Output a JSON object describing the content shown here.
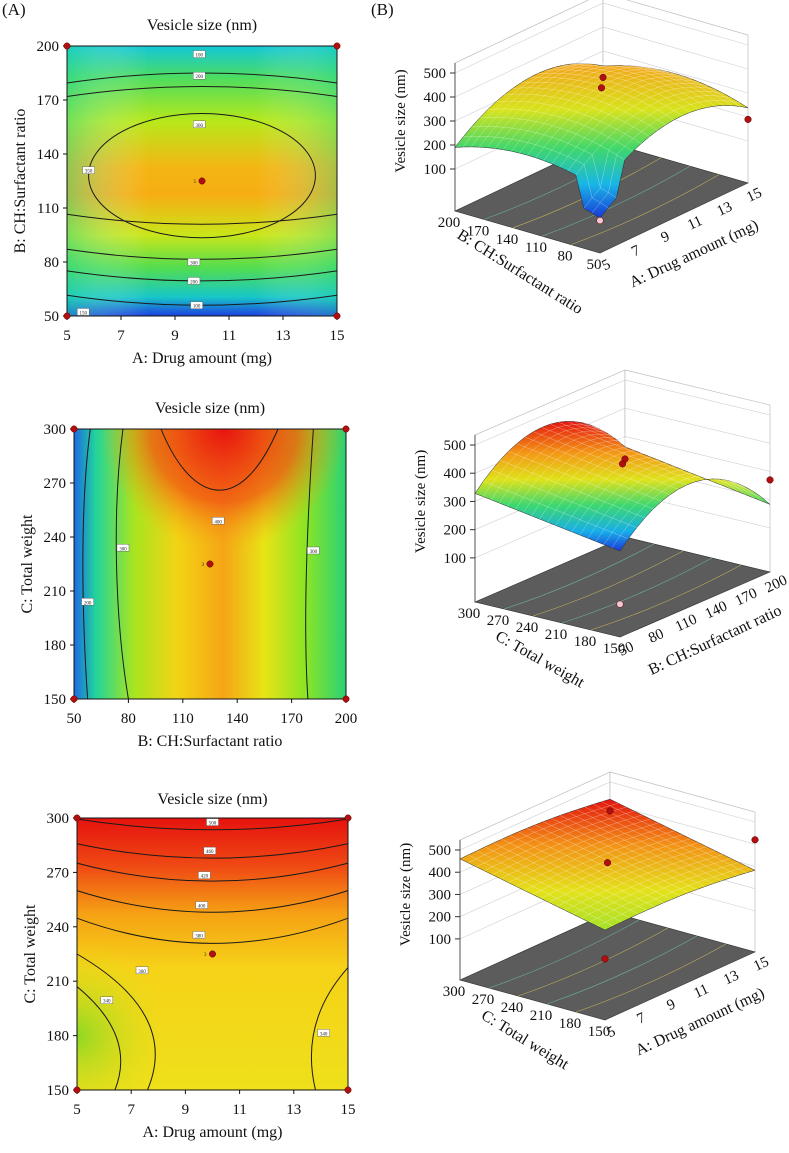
{
  "panel_labels": [
    "(A)",
    "(B)"
  ],
  "chart_data": [
    {
      "id": "contour-ab",
      "type": "contour",
      "title": "Vesicle size (nm)",
      "xlabel": "A: Drug amount (mg)",
      "ylabel": "B: CH:Surfactant ratio",
      "xlim": [
        5,
        15
      ],
      "ylim": [
        50,
        200
      ],
      "xticks": [
        "5",
        "7",
        "9",
        "11",
        "13",
        "15"
      ],
      "yticks": [
        "50",
        "80",
        "110",
        "140",
        "170",
        "200"
      ],
      "contour_labels": [
        "100",
        "200",
        "300",
        "350",
        "300",
        "200",
        "100",
        "150"
      ],
      "design_points": [
        [
          5,
          200
        ],
        [
          15,
          200
        ],
        [
          5,
          50
        ],
        [
          15,
          50
        ],
        [
          10,
          125
        ]
      ],
      "center_label": "5"
    },
    {
      "id": "surface-ab",
      "type": "surface",
      "zlabel": "Vesicle size (nm)",
      "zticks": [
        "100",
        "200",
        "300",
        "400",
        "500"
      ],
      "zlim": [
        50,
        500
      ],
      "left_axis_label": "B: CH:Surfactant ratio",
      "left_ticks": [
        "200",
        "170",
        "140",
        "110",
        "80",
        "50"
      ],
      "right_axis_label": "A: Drug amount (mg)",
      "right_ticks": [
        "5",
        "7",
        "9",
        "11",
        "13",
        "15"
      ],
      "points": [
        [
          0.5,
          0.5,
          380
        ],
        [
          0,
          1,
          190
        ],
        [
          1,
          1,
          190
        ],
        [
          0,
          0,
          60
        ]
      ]
    },
    {
      "id": "contour-bc",
      "type": "contour",
      "title": "Vesicle size (nm)",
      "xlabel": "B: CH:Surfactant ratio",
      "ylabel": "C: Total weight",
      "xlim": [
        50,
        200
      ],
      "ylim": [
        150,
        300
      ],
      "xticks": [
        "50",
        "80",
        "110",
        "140",
        "170",
        "200"
      ],
      "yticks": [
        "150",
        "180",
        "210",
        "240",
        "270",
        "300"
      ],
      "contour_labels": [
        "200",
        "300",
        "300",
        "400"
      ],
      "design_points": [
        [
          50,
          300
        ],
        [
          200,
          300
        ],
        [
          50,
          150
        ],
        [
          200,
          150
        ],
        [
          125,
          225
        ]
      ],
      "center_label": "3"
    },
    {
      "id": "surface-bc",
      "type": "surface",
      "zlabel": "Vesicle size (nm)",
      "zticks": [
        "100",
        "200",
        "300",
        "400",
        "500"
      ],
      "zlim": [
        50,
        500
      ],
      "left_axis_label": "C: Total weight",
      "left_ticks": [
        "300",
        "270",
        "240",
        "210",
        "180",
        "150"
      ],
      "right_axis_label": "B: CH:Surfactant ratio",
      "right_ticks": [
        "50",
        "80",
        "110",
        "140",
        "170",
        "200"
      ],
      "points": [
        [
          0.5,
          0.5,
          380
        ],
        [
          0,
          1,
          270
        ],
        [
          1,
          1,
          220
        ],
        [
          0,
          0,
          60
        ]
      ]
    },
    {
      "id": "contour-ac",
      "type": "contour",
      "title": "Vesicle size (nm)",
      "xlabel": "A: Drug amount (mg)",
      "ylabel": "C: Total weight",
      "xlim": [
        5,
        15
      ],
      "ylim": [
        150,
        300
      ],
      "xticks": [
        "5",
        "7",
        "9",
        "11",
        "13",
        "15"
      ],
      "yticks": [
        "150",
        "180",
        "210",
        "240",
        "270",
        "300"
      ],
      "contour_labels": [
        "500",
        "460",
        "420",
        "400",
        "380",
        "360",
        "340",
        "340"
      ],
      "design_points": [
        [
          5,
          300
        ],
        [
          15,
          300
        ],
        [
          5,
          150
        ],
        [
          15,
          150
        ],
        [
          10,
          225
        ]
      ],
      "center_label": "3"
    },
    {
      "id": "surface-ac",
      "type": "surface",
      "zlabel": "Vesicle size (nm)",
      "zticks": [
        "100",
        "200",
        "300",
        "400",
        "500"
      ],
      "zlim": [
        50,
        500
      ],
      "left_axis_label": "C: Total weight",
      "left_ticks": [
        "300",
        "270",
        "240",
        "210",
        "180",
        "150"
      ],
      "right_axis_label": "A: Drug amount (mg)",
      "right_ticks": [
        "5",
        "7",
        "9",
        "11",
        "13",
        "15"
      ],
      "points": [
        [
          0.5,
          0.5,
          380
        ],
        [
          0,
          1,
          420
        ],
        [
          1,
          1,
          370
        ],
        [
          0,
          0,
          190
        ]
      ]
    }
  ]
}
